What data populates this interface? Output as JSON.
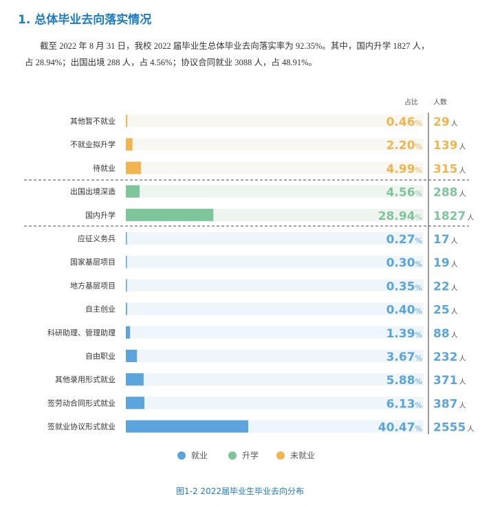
{
  "section_title": "1. 总体毕业去向落实情况",
  "paragraph": {
    "line1": "截至 2022 年 8 月 31 日，我校 2022 届毕业生总体毕业去向落实率为 92.35%。其中，国内升学 1827 人，",
    "line2": "占 28.94%；出国出境 288 人，占 4.56%；协议合同就业 3088 人，占 48.91%。"
  },
  "chart_data": {
    "type": "bar",
    "orientation": "horizontal",
    "column_headers": {
      "percent": "占比",
      "count": "人数"
    },
    "count_unit": "人",
    "percent_unit": "%",
    "categories": [
      "其他暂不就业",
      "不就业拟升学",
      "待就业",
      "出国出境深造",
      "国内升学",
      "应征义务兵",
      "国家基层项目",
      "地方基层项目",
      "自主创业",
      "科研助理、管理助理",
      "自由职业",
      "其他录用形式就业",
      "签劳动合同形式就业",
      "签就业协议形式就业"
    ],
    "percent": [
      0.46,
      2.2,
      4.99,
      4.56,
      28.94,
      0.27,
      0.3,
      0.35,
      0.4,
      1.39,
      3.67,
      5.88,
      6.13,
      40.47
    ],
    "percent_labels": [
      "0.46",
      "2.20",
      "4.99",
      "4.56",
      "28.94",
      "0.27",
      "0.30",
      "0.35",
      "0.40",
      "1.39",
      "3.67",
      "5.88",
      "6.13",
      "40.47"
    ],
    "counts": [
      29,
      139,
      315,
      288,
      1827,
      17,
      19,
      22,
      25,
      88,
      232,
      371,
      387,
      2555
    ],
    "group": [
      "未就业",
      "未就业",
      "未就业",
      "升学",
      "升学",
      "就业",
      "就业",
      "就业",
      "就业",
      "就业",
      "就业",
      "就业",
      "就业",
      "就业"
    ],
    "legend": [
      {
        "name": "就业",
        "color": "#5ba4dc"
      },
      {
        "name": "升学",
        "color": "#7fc59b"
      },
      {
        "name": "未就业",
        "color": "#f0b54e"
      }
    ],
    "caption": "图1-2 2022届毕业生毕业去向分布"
  }
}
